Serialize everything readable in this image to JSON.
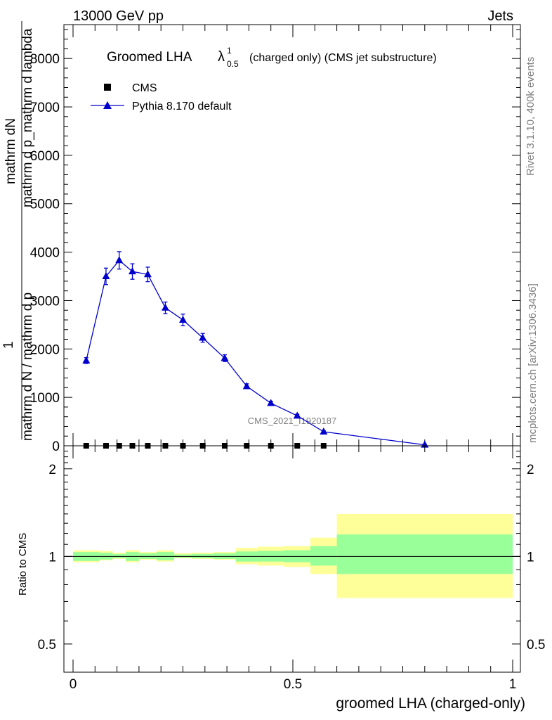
{
  "header": {
    "left": "13000 GeV pp",
    "right": "Jets"
  },
  "side_labels": {
    "rivet": "Rivet 3.1.10,  400k events",
    "mcplots": "mcplots.cern.ch [arXiv:1306.3436]"
  },
  "watermark": "CMS_2021_I1920187",
  "chart_data": [
    {
      "type": "line",
      "title": "Groomed LHA",
      "title_symbol": "λ",
      "title_sup": "1",
      "title_sub": "0.5",
      "title_suffix": "(charged only) (CMS jet substructure)",
      "ylabel_numerator": "mathrm dN",
      "ylabel_denominator_a": "mathrm d p_mathrm d lambda",
      "ylabel_denominator_b": "mathrm d N / mathrm d p",
      "ylabel_one": "1",
      "xlim": [
        0,
        1
      ],
      "ylim": [
        0,
        8700
      ],
      "y_ticks": [
        0,
        1000,
        2000,
        3000,
        4000,
        5000,
        6000,
        7000,
        8000
      ],
      "y_tick_labels": [
        "0",
        "1000",
        "2000",
        "3000",
        "4000",
        "5000",
        "6000",
        "7000",
        "8000"
      ],
      "legend": {
        "position": "top-left",
        "entries": [
          "CMS",
          "Pythia 8.170 default"
        ]
      },
      "series": [
        {
          "name": "CMS",
          "marker": "square",
          "color": "#000000",
          "x": [
            0.03,
            0.075,
            0.105,
            0.135,
            0.17,
            0.21,
            0.25,
            0.295,
            0.345,
            0.395,
            0.45,
            0.51,
            0.57
          ],
          "y": [
            0,
            0,
            0,
            0,
            0,
            0,
            0,
            0,
            0,
            0,
            0,
            0,
            0
          ]
        },
        {
          "name": "Pythia 8.170 default",
          "marker": "triangle",
          "color": "#0000cc",
          "x": [
            0.03,
            0.075,
            0.105,
            0.135,
            0.17,
            0.21,
            0.25,
            0.295,
            0.345,
            0.395,
            0.45,
            0.51,
            0.57,
            0.8
          ],
          "y": [
            1760,
            3500,
            3830,
            3600,
            3540,
            2850,
            2600,
            2230,
            1810,
            1230,
            880,
            620,
            290,
            20
          ],
          "yerr": [
            60,
            170,
            180,
            160,
            150,
            120,
            120,
            90,
            70,
            50,
            40,
            30,
            20,
            5
          ]
        }
      ]
    },
    {
      "type": "area",
      "ylabel": "Ratio to CMS",
      "xlabel": "groomed LHA (charged-only)",
      "xlim": [
        0,
        1
      ],
      "ylim": [
        0.4,
        2.4
      ],
      "y_scale": "log",
      "x_ticks": [
        0,
        0.5,
        1
      ],
      "x_tick_labels": [
        "0",
        "0.5",
        "1"
      ],
      "y_ticks": [
        0.5,
        1,
        2
      ],
      "y_tick_labels": [
        "0.5",
        "1",
        "2"
      ],
      "reference_line": 1,
      "band_colors": {
        "outer": "#ffff99",
        "inner": "#99ff99",
        "line": "#000000"
      },
      "bins": [
        {
          "lo": 0.0,
          "hi": 0.06,
          "outer": [
            0.955,
            1.05
          ],
          "inner": [
            0.965,
            1.035
          ]
        },
        {
          "lo": 0.06,
          "hi": 0.09,
          "outer": [
            0.97,
            1.045
          ],
          "inner": [
            0.975,
            1.03
          ]
        },
        {
          "lo": 0.09,
          "hi": 0.12,
          "outer": [
            0.98,
            1.03
          ],
          "inner": [
            0.985,
            1.02
          ]
        },
        {
          "lo": 0.12,
          "hi": 0.15,
          "outer": [
            0.955,
            1.05
          ],
          "inner": [
            0.965,
            1.035
          ]
        },
        {
          "lo": 0.15,
          "hi": 0.19,
          "outer": [
            0.975,
            1.035
          ],
          "inner": [
            0.98,
            1.025
          ]
        },
        {
          "lo": 0.19,
          "hi": 0.23,
          "outer": [
            0.96,
            1.05
          ],
          "inner": [
            0.97,
            1.035
          ]
        },
        {
          "lo": 0.23,
          "hi": 0.27,
          "outer": [
            0.985,
            1.025
          ],
          "inner": [
            0.99,
            1.015
          ]
        },
        {
          "lo": 0.27,
          "hi": 0.32,
          "outer": [
            0.98,
            1.03
          ],
          "inner": [
            0.985,
            1.02
          ]
        },
        {
          "lo": 0.32,
          "hi": 0.37,
          "outer": [
            0.975,
            1.035
          ],
          "inner": [
            0.98,
            1.025
          ]
        },
        {
          "lo": 0.37,
          "hi": 0.42,
          "outer": [
            0.94,
            1.07
          ],
          "inner": [
            0.96,
            1.04
          ]
        },
        {
          "lo": 0.42,
          "hi": 0.48,
          "outer": [
            0.93,
            1.08
          ],
          "inner": [
            0.96,
            1.045
          ]
        },
        {
          "lo": 0.48,
          "hi": 0.54,
          "outer": [
            0.92,
            1.085
          ],
          "inner": [
            0.955,
            1.05
          ]
        },
        {
          "lo": 0.54,
          "hi": 0.6,
          "outer": [
            0.87,
            1.16
          ],
          "inner": [
            0.93,
            1.085
          ]
        },
        {
          "lo": 0.6,
          "hi": 1.0,
          "outer": [
            0.72,
            1.4
          ],
          "inner": [
            0.87,
            1.19
          ]
        }
      ]
    }
  ]
}
